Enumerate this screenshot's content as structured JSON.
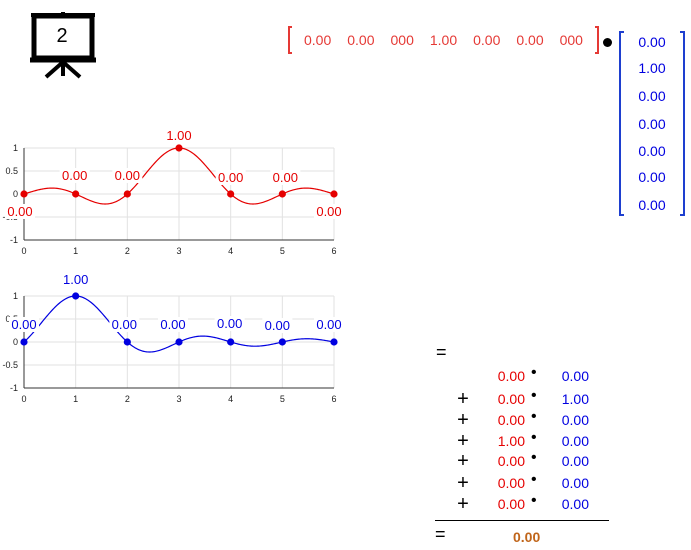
{
  "slide_number": "2",
  "row_vector": [
    "0.00",
    "0.00",
    "000",
    "1.00",
    "0.00",
    "0.00",
    "000"
  ],
  "column_vector": [
    "0.00",
    "1.00",
    "0.00",
    "0.00",
    "0.00",
    "0.00",
    "0.00"
  ],
  "colors": {
    "red": "#e50000",
    "blue": "#0000e0",
    "result": "#c0651a"
  },
  "equals_symbol": "=",
  "sum": {
    "rows": [
      {
        "op": "",
        "a": "0.00",
        "b": "0.00"
      },
      {
        "op": "+",
        "a": "0.00",
        "b": "1.00"
      },
      {
        "op": "+",
        "a": "0.00",
        "b": "0.00"
      },
      {
        "op": "+",
        "a": "1.00",
        "b": "0.00"
      },
      {
        "op": "+",
        "a": "0.00",
        "b": "0.00"
      },
      {
        "op": "+",
        "a": "0.00",
        "b": "0.00"
      },
      {
        "op": "+",
        "a": "0.00",
        "b": "0.00"
      }
    ],
    "multiply_symbol": "•",
    "result": "0.00"
  },
  "chart_data": [
    {
      "type": "line",
      "x": [
        0,
        1,
        2,
        3,
        4,
        5,
        6
      ],
      "y": [
        0,
        0,
        0,
        1,
        0,
        0,
        0
      ],
      "point_labels": [
        "0.00",
        "0.00",
        "0.00",
        "1.00",
        "0.00",
        "0.00",
        "0.00"
      ],
      "xticks": [
        "0",
        "1",
        "2",
        "3",
        "4",
        "5",
        "6"
      ],
      "yticks": [
        "1",
        "0.5",
        "0",
        "-0.5",
        "-1"
      ],
      "xlim": [
        0,
        6
      ],
      "ylim": [
        -1,
        1
      ],
      "grid": true,
      "color": "#e50000"
    },
    {
      "type": "line",
      "x": [
        0,
        1,
        2,
        3,
        4,
        5,
        6
      ],
      "y": [
        0,
        1,
        0,
        0,
        0,
        0,
        0
      ],
      "point_labels": [
        "0.00",
        "1.00",
        "0.00",
        "0.00",
        "0.00",
        "0.00",
        "0.00"
      ],
      "xticks": [
        "0",
        "1",
        "2",
        "3",
        "4",
        "5",
        "6"
      ],
      "yticks": [
        "1",
        "0.5",
        "0",
        "-0.5",
        "-1"
      ],
      "xlim": [
        0,
        6
      ],
      "ylim": [
        -1,
        1
      ],
      "grid": true,
      "color": "#0000e0"
    }
  ]
}
